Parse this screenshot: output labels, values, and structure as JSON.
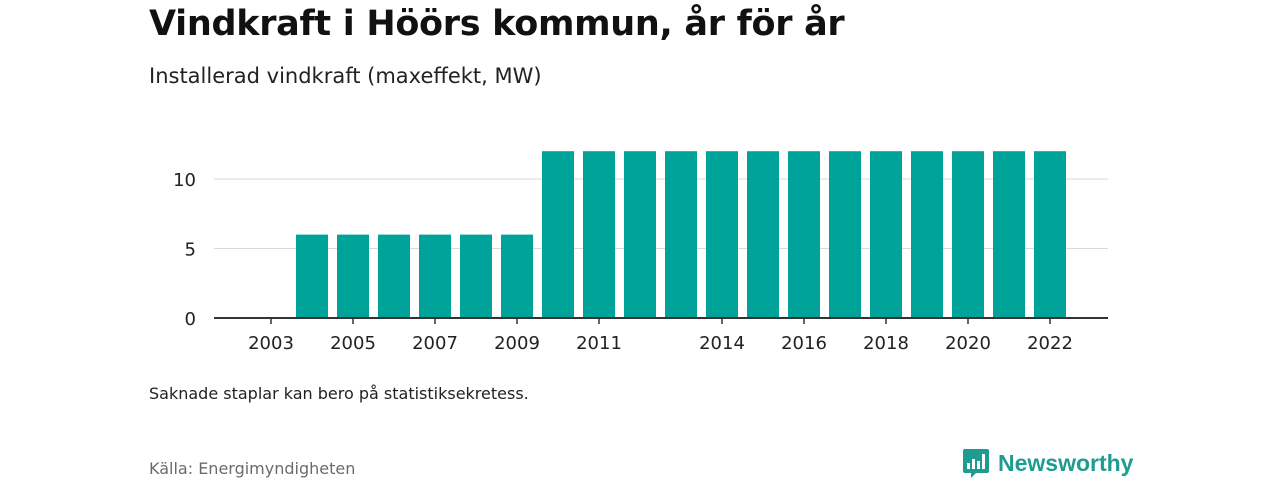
{
  "header": {
    "title": "Vindkraft i Höörs kommun, år för år",
    "subtitle": "Installerad vindkraft (maxeffekt, MW)"
  },
  "footer": {
    "note": "Saknade staplar kan bero på statistiksekretess.",
    "source": "Källa: Energimyndigheten",
    "brand": "Newsworthy"
  },
  "colors": {
    "bar": "#00a39a",
    "brand": "#1f9c92"
  },
  "chart_data": {
    "type": "bar",
    "categories": [
      "2003",
      "2004",
      "2005",
      "2006",
      "2007",
      "2008",
      "2009",
      "2010",
      "2011",
      "2012",
      "2013",
      "2014",
      "2015",
      "2016",
      "2017",
      "2018",
      "2019",
      "2020",
      "2021",
      "2022"
    ],
    "values": [
      0,
      6,
      6,
      6,
      6,
      6,
      6,
      12,
      12,
      12,
      12,
      12,
      12,
      12,
      12,
      12,
      12,
      12,
      12,
      12
    ],
    "x_tick_labels": [
      "2003",
      "2005",
      "2007",
      "2009",
      "2011",
      "2014",
      "2016",
      "2018",
      "2020",
      "2022"
    ],
    "y_ticks": [
      0,
      5,
      10
    ],
    "ylim": [
      0,
      14
    ],
    "grid": true,
    "legend": "none"
  }
}
